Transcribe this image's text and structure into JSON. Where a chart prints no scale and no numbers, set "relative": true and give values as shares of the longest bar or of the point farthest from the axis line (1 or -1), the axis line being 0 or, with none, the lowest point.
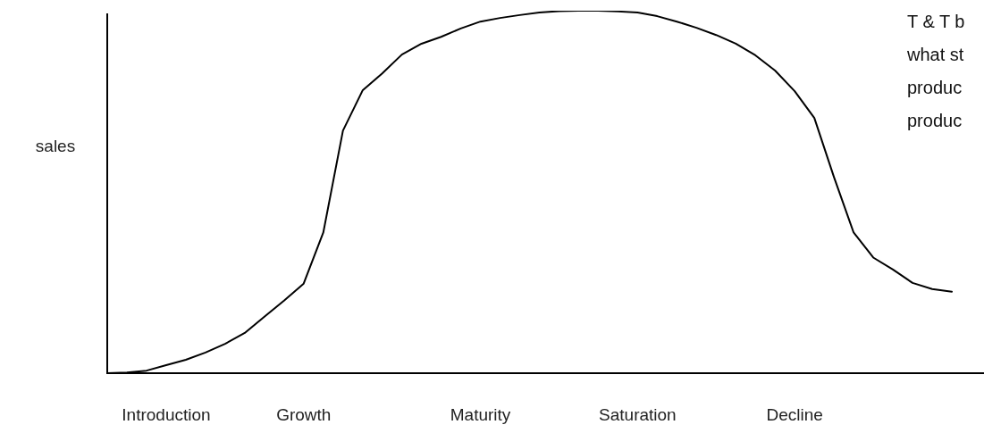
{
  "chart_data": {
    "type": "line",
    "relative": true,
    "ylabel": "sales",
    "categories": [
      null,
      null,
      null,
      "Introduction",
      null,
      null,
      null,
      null,
      null,
      null,
      "Growth",
      null,
      null,
      null,
      null,
      null,
      null,
      null,
      null,
      "Maturity",
      null,
      null,
      null,
      null,
      null,
      null,
      null,
      "Saturation",
      null,
      null,
      null,
      null,
      null,
      null,
      null,
      "Decline",
      null,
      null,
      null,
      null,
      null,
      null,
      null,
      null
    ],
    "annotations": [
      "T & T b",
      "what st",
      "produc",
      "produc"
    ],
    "series": [
      {
        "color": "#000000",
        "values": [
          0,
          0.002,
          0.007,
          0.022,
          0.037,
          0.057,
          0.081,
          0.111,
          0.156,
          0.2,
          0.247,
          0.388,
          0.669,
          0.78,
          0.827,
          0.879,
          0.909,
          0.928,
          0.951,
          0.97,
          0.98,
          0.988,
          0.995,
          0.999,
          1,
          1,
          0.998,
          0.995,
          0.985,
          0.97,
          0.953,
          0.933,
          0.909,
          0.877,
          0.835,
          0.778,
          0.704,
          0.541,
          0.388,
          0.319,
          0.286,
          0.249,
          0.232,
          0.225
        ]
      }
    ],
    "grid": false,
    "legend": false,
    "marker": "none",
    "line_style": "solid"
  }
}
